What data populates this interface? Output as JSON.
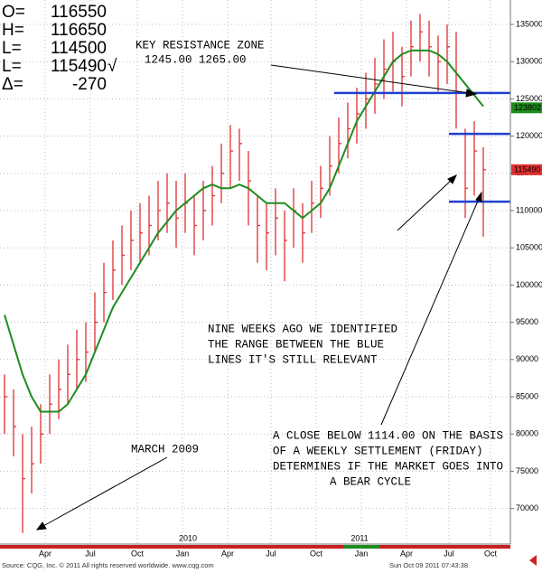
{
  "chart_data": {
    "type": "ohlc",
    "info_box": [
      {
        "label": "O=",
        "value": 116550
      },
      {
        "label": "H=",
        "value": 116650
      },
      {
        "label": "L=",
        "value": 114500
      },
      {
        "label": "L=",
        "value": 115490,
        "mark": "√"
      },
      {
        "label": "Δ=",
        "value": -270
      }
    ],
    "color": "#e03030",
    "high": [
      88000,
      86000,
      80000,
      81000,
      84000,
      88000,
      90000,
      92000,
      94000,
      95000,
      99000,
      103000,
      106000,
      108000,
      110000,
      111000,
      112000,
      114000,
      115000,
      114000,
      115000,
      112000,
      114000,
      116000,
      119000,
      121500,
      121000,
      118000,
      112000,
      111000,
      113000,
      110000,
      113000,
      111000,
      114000,
      116000,
      120000,
      122500,
      124500,
      126500,
      128500,
      130500,
      133000,
      134000,
      132000,
      135500,
      136400,
      135500,
      133500,
      135000,
      134000,
      121000,
      122000,
      118500
    ],
    "low": [
      80000,
      77000,
      66700,
      72000,
      76000,
      80000,
      82000,
      84000,
      86000,
      87000,
      91000,
      95000,
      98000,
      100000,
      102000,
      103000,
      104000,
      106000,
      107000,
      105000,
      107000,
      104000,
      106000,
      108000,
      111000,
      113000,
      114000,
      108000,
      103000,
      102000,
      104000,
      100500,
      105000,
      103000,
      107000,
      109000,
      112000,
      115000,
      117000,
      119000,
      121000,
      123000,
      125000,
      126000,
      124000,
      128000,
      130000,
      128000,
      126000,
      127000,
      121000,
      109000,
      112000,
      106500
    ],
    "close": [
      85000,
      81000,
      74000,
      76000,
      80000,
      84000,
      86000,
      88000,
      90000,
      91000,
      95000,
      99000,
      102000,
      104000,
      106000,
      107000,
      108000,
      110000,
      111000,
      109000,
      111000,
      108000,
      110000,
      112000,
      115000,
      118000,
      119000,
      114000,
      108000,
      107000,
      109000,
      106000,
      110000,
      107000,
      111000,
      113000,
      116000,
      119000,
      121000,
      123000,
      125000,
      127000,
      129000,
      130000,
      128000,
      132000,
      134000,
      132000,
      130000,
      132000,
      126000,
      113000,
      118000,
      115490
    ],
    "moving_average": {
      "color": "#1e8c1e",
      "values": [
        96000,
        92000,
        88000,
        85000,
        83000,
        83000,
        83000,
        84000,
        86000,
        88000,
        91000,
        94000,
        97000,
        99000,
        101000,
        103000,
        105000,
        107000,
        108500,
        110000,
        111000,
        112000,
        113000,
        113500,
        113000,
        113000,
        113500,
        113000,
        112000,
        111000,
        111000,
        111000,
        110000,
        109000,
        110000,
        111000,
        113000,
        116000,
        119000,
        122000,
        124000,
        126000,
        128000,
        130000,
        131000,
        131500,
        131500,
        131500,
        131000,
        130000,
        128500,
        127000,
        125500,
        124000
      ]
    },
    "levels": {
      "color": "#1f3fd0",
      "values": [
        125800,
        120300,
        111200
      ]
    },
    "price_tags": [
      {
        "value": 123802,
        "color": "#1e8c1e"
      },
      {
        "value": 115490,
        "color": "#e03030"
      }
    ],
    "ylim": [
      65460,
      138280
    ],
    "yticks": [
      70000,
      75000,
      80000,
      85000,
      90000,
      95000,
      100000,
      105000,
      110000,
      115000,
      120000,
      125000,
      130000,
      135000
    ],
    "xlim": [
      -0.5,
      56
    ],
    "xticks": [
      {
        "value": 4.5,
        "label": "Apr"
      },
      {
        "value": 9.5,
        "label": "Jul"
      },
      {
        "value": 14.7,
        "label": "Oct"
      },
      {
        "value": 19.7,
        "label": "Jan"
      },
      {
        "value": 24.7,
        "label": "Apr"
      },
      {
        "value": 29.5,
        "label": "Jul"
      },
      {
        "value": 34.5,
        "label": "Oct"
      },
      {
        "value": 39.5,
        "label": "Jan"
      },
      {
        "value": 44.5,
        "label": "Apr"
      },
      {
        "value": 49.2,
        "label": "Jul"
      },
      {
        "value": 53.8,
        "label": "Oct"
      }
    ],
    "years": [
      {
        "value": 20.3,
        "label": "2010"
      },
      {
        "value": 39.3,
        "label": "2011"
      }
    ],
    "grid": true,
    "annotations": {
      "resistance": [
        "KEY RESISTANCE ZONE",
        "1245.00   1265.00"
      ],
      "nine_weeks": [
        "NINE WEEKS AGO WE IDENTIFIED",
        "THE RANGE BETWEEN THE BLUE",
        "LINES  IT'S STILL RELEVANT"
      ],
      "close_below": [
        "A CLOSE BELOW 1114.00 ON THE BASIS",
        "OF A WEEKLY SETTLEMENT (FRIDAY)",
        "DETERMINES IF THE MARKET GOES INTO",
        "A BEAR CYCLE"
      ],
      "march": [
        "MARCH 2009"
      ]
    },
    "source": "Source: CQG, Inc. © 2011 All rights reserved worldwide. www.cqg.com",
    "timestamp": "Sun Oct 09 2011 07:43:38"
  }
}
